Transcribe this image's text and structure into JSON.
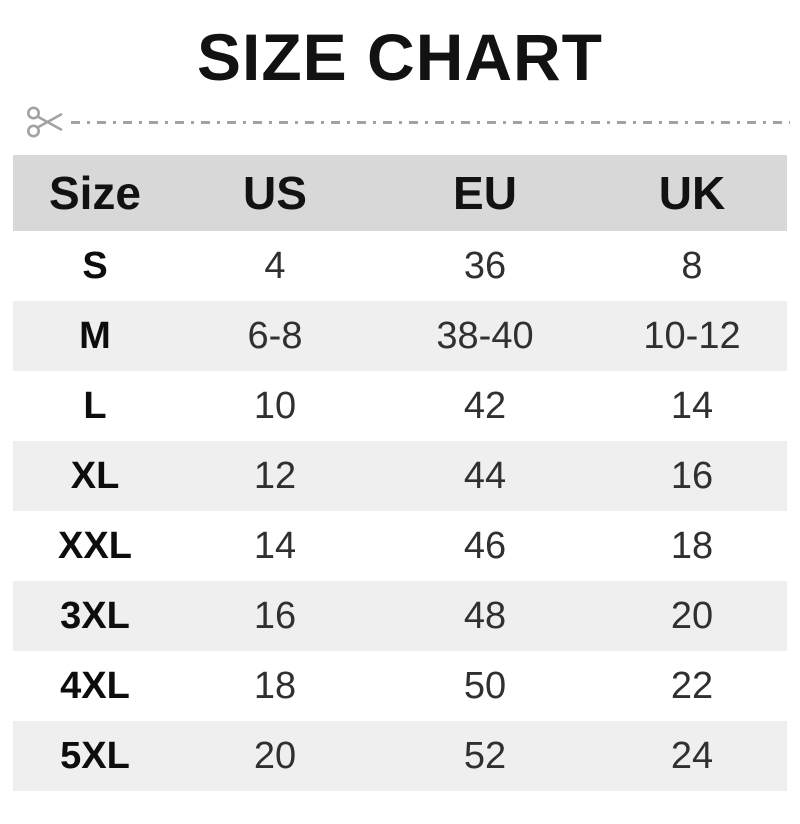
{
  "title": "SIZE CHART",
  "cut_line": {
    "icon": "scissors"
  },
  "table": {
    "headers": [
      "Size",
      "US",
      "EU",
      "UK"
    ],
    "rows": [
      {
        "size": "S",
        "us": "4",
        "eu": "36",
        "uk": "8"
      },
      {
        "size": "M",
        "us": "6-8",
        "eu": "38-40",
        "uk": "10-12"
      },
      {
        "size": "L",
        "us": "10",
        "eu": "42",
        "uk": "14"
      },
      {
        "size": "XL",
        "us": "12",
        "eu": "44",
        "uk": "16"
      },
      {
        "size": "XXL",
        "us": "14",
        "eu": "46",
        "uk": "18"
      },
      {
        "size": "3XL",
        "us": "16",
        "eu": "48",
        "uk": "20"
      },
      {
        "size": "4XL",
        "us": "18",
        "eu": "50",
        "uk": "22"
      },
      {
        "size": "5XL",
        "us": "20",
        "eu": "52",
        "uk": "24"
      }
    ]
  },
  "colors": {
    "header_bg": "#d8d8d8",
    "alt_row_bg": "#efefef",
    "title_text": "#121212",
    "value_text": "#303030",
    "cut_line": "#a3a3a3"
  },
  "chart_data": {
    "type": "table",
    "title": "SIZE CHART",
    "columns": [
      "Size",
      "US",
      "EU",
      "UK"
    ],
    "rows": [
      [
        "S",
        "4",
        "36",
        "8"
      ],
      [
        "M",
        "6-8",
        "38-40",
        "10-12"
      ],
      [
        "L",
        "10",
        "42",
        "14"
      ],
      [
        "XL",
        "12",
        "44",
        "16"
      ],
      [
        "XXL",
        "14",
        "46",
        "18"
      ],
      [
        "3XL",
        "16",
        "48",
        "20"
      ],
      [
        "4XL",
        "18",
        "50",
        "22"
      ],
      [
        "5XL",
        "20",
        "52",
        "24"
      ]
    ]
  }
}
